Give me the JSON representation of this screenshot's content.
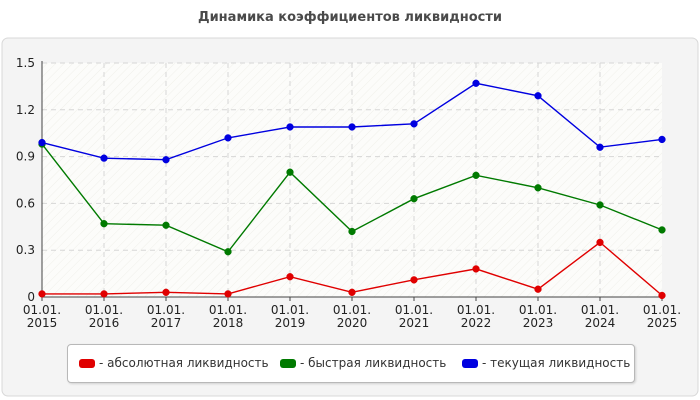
{
  "chart_data": {
    "type": "line",
    "title": "Динамика коэффициентов ликвидности",
    "categories": [
      [
        "01.01.",
        "2015"
      ],
      [
        "01.01.",
        "2016"
      ],
      [
        "01.01.",
        "2017"
      ],
      [
        "01.01.",
        "2018"
      ],
      [
        "01.01.",
        "2019"
      ],
      [
        "01.01.",
        "2020"
      ],
      [
        "01.01.",
        "2021"
      ],
      [
        "01.01.",
        "2022"
      ],
      [
        "01.01.",
        "2023"
      ],
      [
        "01.01.",
        "2024"
      ],
      [
        "01.01.",
        "2025"
      ]
    ],
    "y_ticks": [
      "0",
      "0.3",
      "0.6",
      "0.9",
      "1.2",
      "1.5"
    ],
    "ylim": [
      0,
      1.5
    ],
    "grid": true,
    "legend_position": "bottom",
    "series": [
      {
        "name": "- абсолютная ликвидность",
        "color": "#e00000",
        "values": [
          0.02,
          0.02,
          0.03,
          0.02,
          0.13,
          0.03,
          0.11,
          0.18,
          0.05,
          0.35,
          0.01
        ]
      },
      {
        "name": "- быстрая ликвидность",
        "color": "#007a00",
        "values": [
          0.98,
          0.47,
          0.46,
          0.29,
          0.8,
          0.42,
          0.63,
          0.78,
          0.7,
          0.59,
          0.43
        ]
      },
      {
        "name": "- текущая ликвидность",
        "color": "#0000e0",
        "values": [
          0.99,
          0.89,
          0.88,
          1.02,
          1.09,
          1.09,
          1.11,
          1.37,
          1.29,
          0.96,
          1.01
        ]
      }
    ]
  }
}
